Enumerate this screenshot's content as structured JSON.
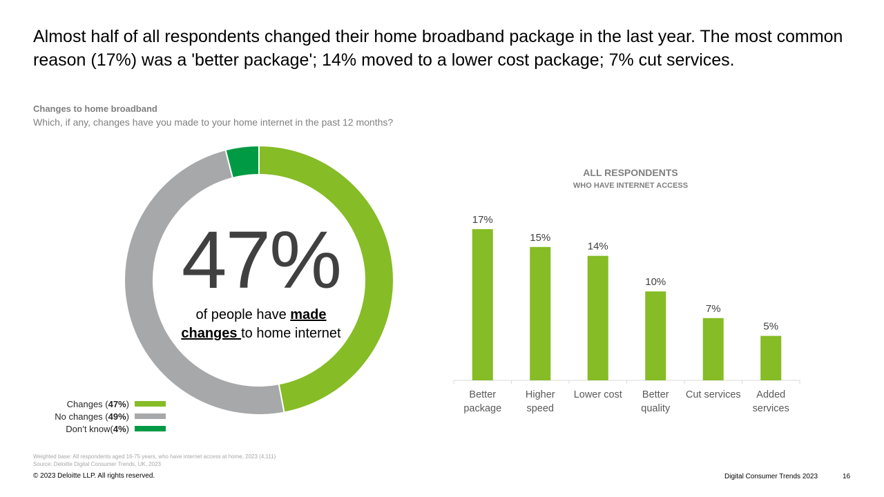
{
  "headline": "Almost half of all respondents changed their home broadband package in the last year. The most common reason (17%) was a 'better package'; 14% moved to a lower cost package; 7% cut services.",
  "section": {
    "title": "Changes to home broadband",
    "question": "Which, if any, changes have you made to your home internet in the past 12 months?"
  },
  "donut": {
    "big_value": "47%",
    "caption_pre": "of people have ",
    "caption_em": "made changes ",
    "caption_post": "to home internet"
  },
  "legend": [
    {
      "label": "Changes (",
      "value": "47%",
      "suffix": ")",
      "color": "#86bc25"
    },
    {
      "label": "No changes (",
      "value": "49%",
      "suffix": ")",
      "color": "#a7a8aa"
    },
    {
      "label": "Don’t know(",
      "value": "4%",
      "suffix": ")",
      "color": "#009a44"
    }
  ],
  "bar_chart": {
    "title": "ALL RESPONDENTS",
    "subtitle": "WHO HAVE INTERNET ACCESS"
  },
  "chart_data": [
    {
      "type": "pie",
      "variant": "donut",
      "categories": [
        "Changes",
        "No changes",
        "Don’t know"
      ],
      "values": [
        47,
        49,
        4
      ],
      "colors": [
        "#86bc25",
        "#a7a8aa",
        "#009a44"
      ],
      "center_label": "47%"
    },
    {
      "type": "bar",
      "categories": [
        [
          "Better",
          "package"
        ],
        [
          "Higher",
          "speed"
        ],
        [
          "Lower cost"
        ],
        [
          "Better",
          "quality"
        ],
        [
          "Cut services"
        ],
        [
          "Added",
          "services"
        ]
      ],
      "values": [
        17,
        15,
        14,
        10,
        7,
        5
      ],
      "value_labels": [
        "17%",
        "15%",
        "14%",
        "10%",
        "7%",
        "5%"
      ],
      "color": "#86bc25",
      "ylim": [
        0,
        17
      ],
      "grid": false
    }
  ],
  "footer": {
    "base_note": "Weighted base: All respondents aged 16-75 years, who have internet access at home, 2023 (4,111)",
    "source_note": "Source: Deloitte Digital Consumer Trends, UK, 2023",
    "copyright": "© 2023 Deloitte LLP. All rights reserved.",
    "brand": "Digital Consumer Trends 2023",
    "page": "16"
  }
}
